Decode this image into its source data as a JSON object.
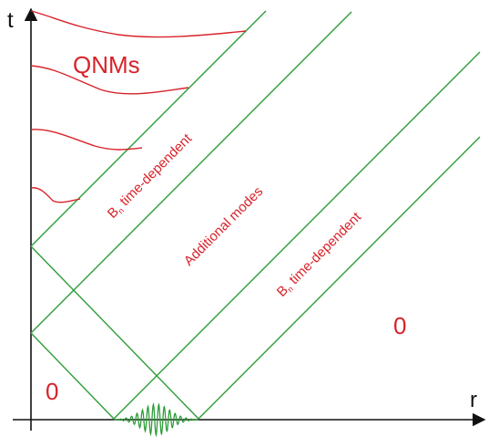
{
  "colors": {
    "axis": "#111111",
    "green": "#2e9d3a",
    "red": "#d8232a"
  },
  "axes": {
    "x_label": "r",
    "y_label": "t"
  },
  "labels": {
    "qnms": "QNMs",
    "zero_left": "0",
    "zero_right": "0",
    "region_upper_prefix": "B",
    "region_upper_sub": "n",
    "region_upper_suffix": " time-dependent",
    "region_middle": "Additional modes",
    "region_lower_prefix": "B",
    "region_lower_sub": "n",
    "region_lower_suffix": " time-dependent"
  }
}
